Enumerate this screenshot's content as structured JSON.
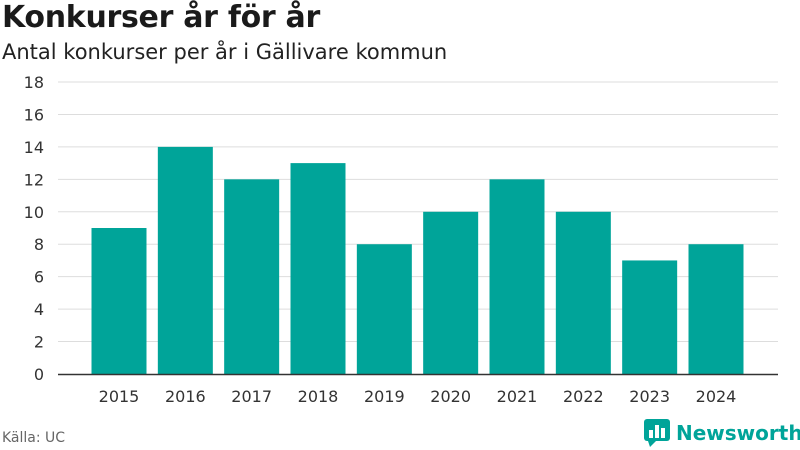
{
  "header": {
    "title": "Konkurser år för år",
    "subtitle": "Antal konkurser per år i Gällivare kommun"
  },
  "footer": {
    "source": "Källa: UC",
    "brand": "Newsworthy",
    "logo_icon": "bar-chart-logo-icon"
  },
  "colors": {
    "bar": "#00a499",
    "grid": "#dddddd",
    "axis": "#333333"
  },
  "chart_data": {
    "type": "bar",
    "title": "Konkurser år för år",
    "subtitle": "Antal konkurser per år i Gällivare kommun",
    "xlabel": "",
    "ylabel": "",
    "categories": [
      "2015",
      "2016",
      "2017",
      "2018",
      "2019",
      "2020",
      "2021",
      "2022",
      "2023",
      "2024"
    ],
    "values": [
      9,
      14,
      12,
      13,
      8,
      10,
      12,
      10,
      7,
      8
    ],
    "ylim": [
      0,
      18
    ],
    "yticks": [
      0,
      2,
      4,
      6,
      8,
      10,
      12,
      14,
      16,
      18
    ],
    "grid": true,
    "legend": "none"
  }
}
